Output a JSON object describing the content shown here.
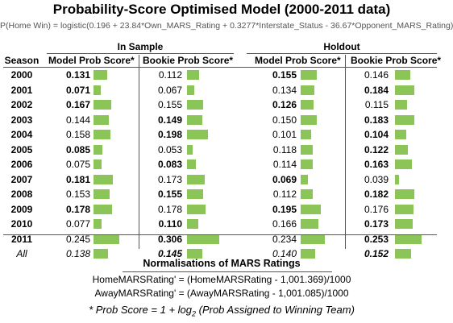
{
  "title": "Probability-Score Optimised Model (2000-2011 data)",
  "formula": "P(Home Win) = logistic(0.196 + 23.84*Own_MARS_Rating + 0.3277*Interstate_Status - 36.67*Opponent_MARS_Rating)",
  "groups": {
    "in_sample": "In Sample",
    "holdout": "Holdout"
  },
  "headers": {
    "season": "Season",
    "model_prob_score": "Model Prob Score*",
    "bookie_prob_score": "Bookie Prob Score*"
  },
  "colors": {
    "bar": "#8bc457"
  },
  "table": {
    "rows": [
      {
        "season": "2000",
        "values": [
          "0.131",
          "0.112",
          "0.155",
          "0.146"
        ],
        "bold": [
          true,
          false,
          true,
          false
        ]
      },
      {
        "season": "2001",
        "values": [
          "0.071",
          "0.067",
          "0.134",
          "0.184"
        ],
        "bold": [
          true,
          false,
          false,
          true
        ]
      },
      {
        "season": "2002",
        "values": [
          "0.167",
          "0.155",
          "0.126",
          "0.115"
        ],
        "bold": [
          true,
          false,
          true,
          false
        ]
      },
      {
        "season": "2003",
        "values": [
          "0.144",
          "0.149",
          "0.150",
          "0.183"
        ],
        "bold": [
          false,
          true,
          false,
          true
        ]
      },
      {
        "season": "2004",
        "values": [
          "0.158",
          "0.198",
          "0.101",
          "0.104"
        ],
        "bold": [
          false,
          true,
          false,
          true
        ]
      },
      {
        "season": "2005",
        "values": [
          "0.085",
          "0.053",
          "0.118",
          "0.122"
        ],
        "bold": [
          true,
          false,
          false,
          true
        ]
      },
      {
        "season": "2006",
        "values": [
          "0.075",
          "0.083",
          "0.114",
          "0.163"
        ],
        "bold": [
          false,
          true,
          false,
          true
        ]
      },
      {
        "season": "2007",
        "values": [
          "0.181",
          "0.173",
          "0.069",
          "0.039"
        ],
        "bold": [
          true,
          false,
          true,
          false
        ]
      },
      {
        "season": "2008",
        "values": [
          "0.153",
          "0.155",
          "0.112",
          "0.182"
        ],
        "bold": [
          false,
          true,
          false,
          true
        ]
      },
      {
        "season": "2009",
        "values": [
          "0.178",
          "0.178",
          "0.195",
          "0.176"
        ],
        "bold": [
          true,
          false,
          true,
          false
        ]
      },
      {
        "season": "2010",
        "values": [
          "0.077",
          "0.110",
          "0.166",
          "0.173"
        ],
        "bold": [
          false,
          true,
          false,
          true
        ]
      },
      {
        "season": "2011",
        "values": [
          "0.245",
          "0.306",
          "0.234",
          "0.253"
        ],
        "bold": [
          false,
          true,
          false,
          true
        ]
      },
      {
        "season": "All",
        "values": [
          "0.138",
          "0.145",
          "0.140",
          "0.152"
        ],
        "bold": [
          false,
          true,
          false,
          true
        ]
      }
    ]
  },
  "normalisations": {
    "title": "Normalisations of MARS Ratings",
    "home": "HomeMARSRating' = (HomeMARSRating - 1,001.369)/1000",
    "away": "AwayMARSRating' = (AwayMARSRating - 1,001.085)/1000"
  },
  "footnote": {
    "prefix": "* Prob Score = 1 + log",
    "sub": "2",
    "suffix": " (Prob Assigned to Winning Team)"
  }
}
